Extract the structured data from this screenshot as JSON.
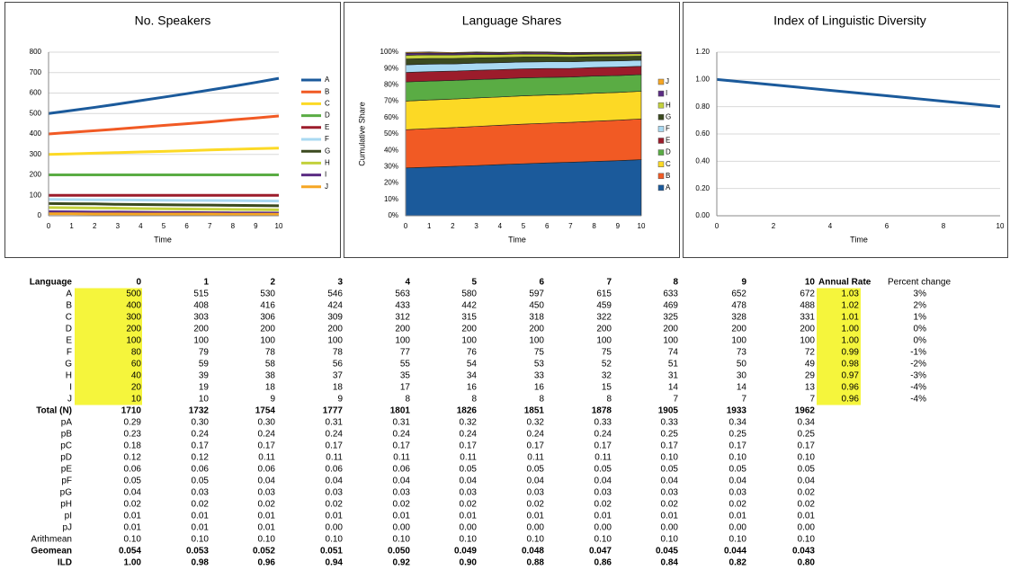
{
  "chart_data": [
    {
      "type": "line",
      "title": "No. Speakers",
      "x_label": "Time",
      "x": [
        0,
        1,
        2,
        3,
        4,
        5,
        6,
        7,
        8,
        9,
        10
      ],
      "xlim": [
        0,
        10
      ],
      "xticks": [
        0,
        1,
        2,
        3,
        4,
        5,
        6,
        7,
        8,
        9,
        10
      ],
      "ylim": [
        0,
        800
      ],
      "yticks": [
        0,
        100,
        200,
        300,
        400,
        500,
        600,
        700,
        800
      ],
      "grid": true,
      "legend": "right",
      "series": [
        {
          "name": "A",
          "color": "#1b5a9b",
          "values": [
            500,
            515,
            530,
            546,
            563,
            580,
            597,
            615,
            633,
            652,
            672
          ]
        },
        {
          "name": "B",
          "color": "#f15a24",
          "values": [
            400,
            408,
            416,
            424,
            433,
            442,
            450,
            459,
            469,
            478,
            488
          ]
        },
        {
          "name": "C",
          "color": "#fcd925",
          "values": [
            300,
            303,
            306,
            309,
            312,
            315,
            318,
            322,
            325,
            328,
            331
          ]
        },
        {
          "name": "D",
          "color": "#5aac44",
          "values": [
            200,
            200,
            200,
            200,
            200,
            200,
            200,
            200,
            200,
            200,
            200
          ]
        },
        {
          "name": "E",
          "color": "#9c1c2b",
          "values": [
            100,
            100,
            100,
            100,
            100,
            100,
            100,
            100,
            100,
            100,
            100
          ]
        },
        {
          "name": "F",
          "color": "#a9d9f2",
          "values": [
            80,
            79,
            78,
            78,
            77,
            76,
            75,
            75,
            74,
            73,
            72
          ]
        },
        {
          "name": "G",
          "color": "#3b4a1f",
          "values": [
            60,
            59,
            58,
            56,
            55,
            54,
            53,
            52,
            51,
            50,
            49
          ]
        },
        {
          "name": "H",
          "color": "#c3d13c",
          "values": [
            40,
            39,
            38,
            37,
            35,
            34,
            33,
            32,
            31,
            30,
            29
          ]
        },
        {
          "name": "I",
          "color": "#5b2c83",
          "values": [
            20,
            19,
            18,
            18,
            17,
            16,
            16,
            15,
            14,
            14,
            13
          ]
        },
        {
          "name": "J",
          "color": "#f6a623",
          "values": [
            10,
            10,
            9,
            9,
            8,
            8,
            8,
            8,
            7,
            7,
            7
          ]
        }
      ]
    },
    {
      "type": "area",
      "title": "Language Shares",
      "x_label": "Time",
      "y_label": "Cumulative Share",
      "x": [
        0,
        1,
        2,
        3,
        4,
        5,
        6,
        7,
        8,
        9,
        10
      ],
      "xlim": [
        0,
        10
      ],
      "xticks": [
        0,
        1,
        2,
        3,
        4,
        5,
        6,
        7,
        8,
        9,
        10
      ],
      "ylim": [
        0,
        100
      ],
      "yticks": [
        {
          "value": 0,
          "label": "0%"
        },
        {
          "value": 10,
          "label": "10%"
        },
        {
          "value": 20,
          "label": "20%"
        },
        {
          "value": 30,
          "label": "30%"
        },
        {
          "value": 40,
          "label": "40%"
        },
        {
          "value": 50,
          "label": "50%"
        },
        {
          "value": 60,
          "label": "60%"
        },
        {
          "value": 70,
          "label": "70%"
        },
        {
          "value": 80,
          "label": "80%"
        },
        {
          "value": 90,
          "label": "90%"
        },
        {
          "value": 100,
          "label": "100%"
        }
      ],
      "grid": false,
      "legend": "right",
      "series": [
        {
          "name": "A",
          "color": "#1b5a9b",
          "values": [
            29.2,
            29.7,
            30.2,
            30.7,
            31.3,
            31.8,
            32.3,
            32.7,
            33.2,
            33.7,
            34.3
          ]
        },
        {
          "name": "B",
          "color": "#f15a24",
          "values": [
            23.4,
            23.6,
            23.7,
            23.9,
            24.0,
            24.2,
            24.3,
            24.4,
            24.6,
            24.7,
            24.9
          ]
        },
        {
          "name": "C",
          "color": "#fcd925",
          "values": [
            17.5,
            17.5,
            17.4,
            17.4,
            17.3,
            17.3,
            17.2,
            17.1,
            17.1,
            17.0,
            16.9
          ]
        },
        {
          "name": "D",
          "color": "#5aac44",
          "values": [
            11.7,
            11.5,
            11.4,
            11.3,
            11.1,
            11.0,
            10.8,
            10.6,
            10.5,
            10.3,
            10.2
          ]
        },
        {
          "name": "E",
          "color": "#9c1c2b",
          "values": [
            5.8,
            5.8,
            5.7,
            5.6,
            5.6,
            5.5,
            5.4,
            5.3,
            5.2,
            5.2,
            5.1
          ]
        },
        {
          "name": "F",
          "color": "#a9d9f2",
          "values": [
            4.7,
            4.6,
            4.4,
            4.4,
            4.3,
            4.2,
            4.1,
            4.0,
            3.9,
            3.8,
            3.7
          ]
        },
        {
          "name": "G",
          "color": "#3b4a1f",
          "values": [
            3.5,
            3.4,
            3.3,
            3.2,
            3.1,
            3.0,
            2.9,
            2.8,
            2.7,
            2.6,
            2.5
          ]
        },
        {
          "name": "H",
          "color": "#c3d13c",
          "values": [
            2.3,
            2.3,
            2.2,
            2.1,
            1.9,
            1.9,
            1.8,
            1.7,
            1.6,
            1.6,
            1.5
          ]
        },
        {
          "name": "I",
          "color": "#5b2c83",
          "values": [
            1.2,
            1.1,
            1.0,
            1.0,
            0.9,
            0.9,
            0.9,
            0.8,
            0.7,
            0.7,
            0.7
          ]
        },
        {
          "name": "J",
          "color": "#f6a623",
          "values": [
            0.6,
            0.6,
            0.5,
            0.5,
            0.4,
            0.4,
            0.4,
            0.4,
            0.4,
            0.4,
            0.4
          ]
        }
      ]
    },
    {
      "type": "line",
      "title": "Index of Linguistic Diversity",
      "x_label": "Time",
      "x": [
        0,
        1,
        2,
        3,
        4,
        5,
        6,
        7,
        8,
        9,
        10
      ],
      "xlim": [
        0,
        10
      ],
      "xticks": [
        0,
        2,
        4,
        6,
        8,
        10
      ],
      "ylim": [
        0,
        1.2
      ],
      "yticks": [
        {
          "value": 0,
          "label": "0.00"
        },
        {
          "value": 0.2,
          "label": "0.20"
        },
        {
          "value": 0.4,
          "label": "0.40"
        },
        {
          "value": 0.6,
          "label": "0.60"
        },
        {
          "value": 0.8,
          "label": "0.80"
        },
        {
          "value": 1,
          "label": "1.00"
        },
        {
          "value": 1.2,
          "label": "1.20"
        }
      ],
      "grid": true,
      "series": [
        {
          "color": "#1b5a9b",
          "values": [
            1,
            0.98,
            0.96,
            0.94,
            0.92,
            0.9,
            0.88,
            0.86,
            0.84,
            0.82,
            0.8
          ]
        }
      ]
    }
  ],
  "table": {
    "rows": [
      [
        "Language",
        "0",
        "1",
        "2",
        "3",
        "4",
        "5",
        "6",
        "7",
        "8",
        "9",
        "10",
        "Annual Rate",
        "Percent change"
      ],
      [
        "A",
        "500",
        "515",
        "530",
        "546",
        "563",
        "580",
        "597",
        "615",
        "633",
        "652",
        "672",
        "1.03",
        "3%"
      ],
      [
        "B",
        "400",
        "408",
        "416",
        "424",
        "433",
        "442",
        "450",
        "459",
        "469",
        "478",
        "488",
        "1.02",
        "2%"
      ],
      [
        "C",
        "300",
        "303",
        "306",
        "309",
        "312",
        "315",
        "318",
        "322",
        "325",
        "328",
        "331",
        "1.01",
        "1%"
      ],
      [
        "D",
        "200",
        "200",
        "200",
        "200",
        "200",
        "200",
        "200",
        "200",
        "200",
        "200",
        "200",
        "1.00",
        "0%"
      ],
      [
        "E",
        "100",
        "100",
        "100",
        "100",
        "100",
        "100",
        "100",
        "100",
        "100",
        "100",
        "100",
        "1.00",
        "0%"
      ],
      [
        "F",
        "80",
        "79",
        "78",
        "78",
        "77",
        "76",
        "75",
        "75",
        "74",
        "73",
        "72",
        "0.99",
        "-1%"
      ],
      [
        "G",
        "60",
        "59",
        "58",
        "56",
        "55",
        "54",
        "53",
        "52",
        "51",
        "50",
        "49",
        "0.98",
        "-2%"
      ],
      [
        "H",
        "40",
        "39",
        "38",
        "37",
        "35",
        "34",
        "33",
        "32",
        "31",
        "30",
        "29",
        "0.97",
        "-3%"
      ],
      [
        "I",
        "20",
        "19",
        "18",
        "18",
        "17",
        "16",
        "16",
        "15",
        "14",
        "14",
        "13",
        "0.96",
        "-4%"
      ],
      [
        "J",
        "10",
        "10",
        "9",
        "9",
        "8",
        "8",
        "8",
        "8",
        "7",
        "7",
        "7",
        "0.96",
        "-4%"
      ],
      [
        "Total (N)",
        "1710",
        "1732",
        "1754",
        "1777",
        "1801",
        "1826",
        "1851",
        "1878",
        "1905",
        "1933",
        "1962"
      ],
      [
        "pA",
        "0.29",
        "0.30",
        "0.30",
        "0.31",
        "0.31",
        "0.32",
        "0.32",
        "0.33",
        "0.33",
        "0.34",
        "0.34"
      ],
      [
        "pB",
        "0.23",
        "0.24",
        "0.24",
        "0.24",
        "0.24",
        "0.24",
        "0.24",
        "0.24",
        "0.25",
        "0.25",
        "0.25"
      ],
      [
        "pC",
        "0.18",
        "0.17",
        "0.17",
        "0.17",
        "0.17",
        "0.17",
        "0.17",
        "0.17",
        "0.17",
        "0.17",
        "0.17"
      ],
      [
        "pD",
        "0.12",
        "0.12",
        "0.11",
        "0.11",
        "0.11",
        "0.11",
        "0.11",
        "0.11",
        "0.10",
        "0.10",
        "0.10"
      ],
      [
        "pE",
        "0.06",
        "0.06",
        "0.06",
        "0.06",
        "0.06",
        "0.05",
        "0.05",
        "0.05",
        "0.05",
        "0.05",
        "0.05"
      ],
      [
        "pF",
        "0.05",
        "0.05",
        "0.04",
        "0.04",
        "0.04",
        "0.04",
        "0.04",
        "0.04",
        "0.04",
        "0.04",
        "0.04"
      ],
      [
        "pG",
        "0.04",
        "0.03",
        "0.03",
        "0.03",
        "0.03",
        "0.03",
        "0.03",
        "0.03",
        "0.03",
        "0.03",
        "0.02"
      ],
      [
        "pH",
        "0.02",
        "0.02",
        "0.02",
        "0.02",
        "0.02",
        "0.02",
        "0.02",
        "0.02",
        "0.02",
        "0.02",
        "0.02"
      ],
      [
        "pI",
        "0.01",
        "0.01",
        "0.01",
        "0.01",
        "0.01",
        "0.01",
        "0.01",
        "0.01",
        "0.01",
        "0.01",
        "0.01"
      ],
      [
        "pJ",
        "0.01",
        "0.01",
        "0.01",
        "0.00",
        "0.00",
        "0.00",
        "0.00",
        "0.00",
        "0.00",
        "0.00",
        "0.00"
      ],
      [
        "Arithmean",
        "0.10",
        "0.10",
        "0.10",
        "0.10",
        "0.10",
        "0.10",
        "0.10",
        "0.10",
        "0.10",
        "0.10",
        "0.10"
      ],
      [
        "Geomean",
        "0.054",
        "0.053",
        "0.052",
        "0.051",
        "0.050",
        "0.049",
        "0.048",
        "0.047",
        "0.045",
        "0.044",
        "0.043"
      ],
      [
        "ILD",
        "1.00",
        "0.98",
        "0.96",
        "0.94",
        "0.92",
        "0.90",
        "0.88",
        "0.86",
        "0.84",
        "0.82",
        "0.80"
      ]
    ]
  }
}
